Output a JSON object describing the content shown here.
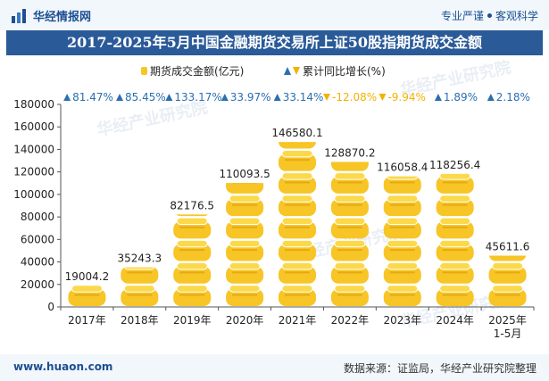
{
  "header": {
    "logo_text": "华经情报网",
    "tagline_left": "专业严谨",
    "tagline_right": "客观科学"
  },
  "title": "2017-2025年5月中国金融期货交易所上证50股指期货成交金额",
  "footer": {
    "url": "www.huaon.com",
    "source": "数据来源：证监局，华经产业研究院整理"
  },
  "watermark": "华经产业研究院",
  "colors": {
    "accent": "#2a5a98",
    "bar_gold": "#f7c526",
    "bar_gold_light": "#fbd94a",
    "growth_up": "#2a6fb0",
    "growth_down": "#f2b200"
  },
  "chart_data": {
    "type": "bar",
    "title": "2017-2025年5月中国金融期货交易所上证50股指期货成交金额",
    "categories": [
      "2017年",
      "2018年",
      "2019年",
      "2020年",
      "2021年",
      "2022年",
      "2023年",
      "2024年",
      "2025年 1-5月"
    ],
    "category_lines": [
      [
        "2017年"
      ],
      [
        "2018年"
      ],
      [
        "2019年"
      ],
      [
        "2020年"
      ],
      [
        "2021年"
      ],
      [
        "2022年"
      ],
      [
        "2023年"
      ],
      [
        "2024年"
      ],
      [
        "2025年",
        "1-5月"
      ]
    ],
    "series": [
      {
        "name": "期货成交金额(亿元)",
        "values": [
          19004.2,
          35243.3,
          82176.5,
          110093.5,
          146580.1,
          128870.2,
          116058.4,
          118256.4,
          45611.6
        ],
        "labels": [
          "19004.2",
          "35243.3",
          "82176.5",
          "110093.5",
          "146580.1",
          "128870.2",
          "116058.4",
          "118256.4",
          "45611.6"
        ]
      },
      {
        "name": "累计同比增长(%)",
        "values": [
          81.47,
          85.45,
          133.17,
          33.97,
          33.14,
          -12.08,
          -9.94,
          1.89,
          2.18
        ],
        "labels": [
          "81.47%",
          "85.45%",
          "133.17%",
          "33.97%",
          "33.14%",
          "-12.08%",
          "-9.94%",
          "1.89%",
          "2.18%"
        ]
      }
    ],
    "legend": [
      "期货成交金额(亿元)",
      "累计同比增长(%)"
    ],
    "legend_position": "top-center",
    "ylim": [
      0,
      180000
    ],
    "yticks": [
      "0",
      "20000",
      "40000",
      "60000",
      "80000",
      "100000",
      "120000",
      "140000",
      "160000",
      "180000"
    ],
    "grid": false
  }
}
